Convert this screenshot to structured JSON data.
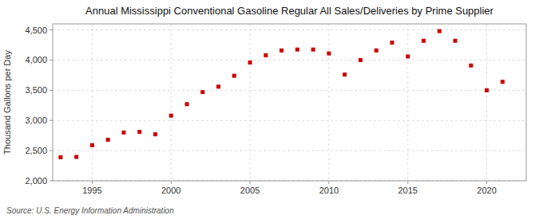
{
  "chart_data": {
    "type": "scatter",
    "title": "Annual Mississippi Conventional Gasoline Regular All Sales/Deliveries by Prime Supplier",
    "ylabel": "Thousand Gallons per Day",
    "source": "Source: U.S. Energy Information Administration",
    "x": [
      1993,
      1994,
      1995,
      1996,
      1997,
      1998,
      1999,
      2000,
      2001,
      2002,
      2003,
      2004,
      2005,
      2006,
      2007,
      2008,
      2009,
      2010,
      2011,
      2012,
      2013,
      2014,
      2015,
      2016,
      2017,
      2018,
      2019,
      2020,
      2021
    ],
    "values": [
      2390,
      2395,
      2590,
      2680,
      2800,
      2810,
      2770,
      3080,
      3270,
      3470,
      3560,
      3740,
      3960,
      4080,
      4160,
      4175,
      4175,
      4110,
      3760,
      4000,
      4160,
      4290,
      4060,
      4320,
      4480,
      4320,
      3910,
      3500,
      3640
    ],
    "color": "#cc0000",
    "marker": "square",
    "xlim": [
      1992.5,
      2022.5
    ],
    "xticks": [
      1995,
      2000,
      2005,
      2010,
      2015,
      2020
    ],
    "ylim": [
      2000,
      4600
    ],
    "yticks": [
      {
        "value": 2000,
        "label": "2,000"
      },
      {
        "value": 2500,
        "label": "2,500"
      },
      {
        "value": 3000,
        "label": "3,000"
      },
      {
        "value": 3500,
        "label": "3,500"
      },
      {
        "value": 4000,
        "label": "4,000"
      },
      {
        "value": 4500,
        "label": "4,500"
      }
    ],
    "grid": true
  }
}
